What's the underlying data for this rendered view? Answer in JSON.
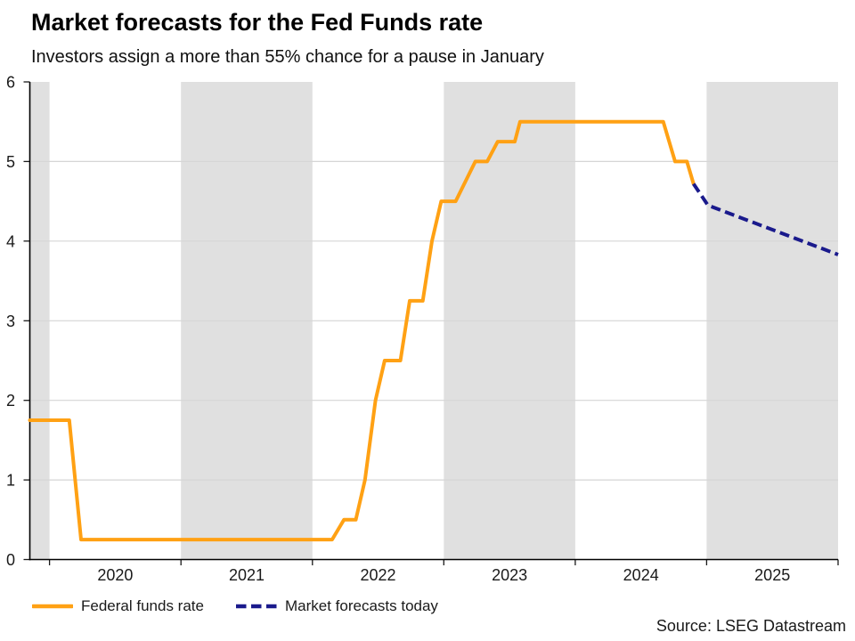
{
  "source": "Source: LSEG Datastream",
  "chart_data": {
    "type": "line",
    "title": "Market forecasts for the Fed Funds rate",
    "subtitle": "Investors assign a more than 55% chance for a pause in January",
    "xlabel": "",
    "ylabel": "",
    "xlim": [
      2019.85,
      2026.0
    ],
    "ylim": [
      0,
      6
    ],
    "yticks": [
      0,
      1,
      2,
      3,
      4,
      5,
      6
    ],
    "x_year_boundaries": [
      2020,
      2021,
      2022,
      2023,
      2024,
      2025,
      2026
    ],
    "x_year_labels": [
      "2020",
      "2021",
      "2022",
      "2023",
      "2024",
      "2025"
    ],
    "shaded_year_bands": [
      [
        2019.85,
        2020
      ],
      [
        2021,
        2022
      ],
      [
        2023,
        2024
      ],
      [
        2025,
        2026
      ]
    ],
    "band_color": "#E0E0E0",
    "gridline_color": "#D6D6D6",
    "axis_color": "#000000",
    "grid": "horizontal",
    "legend_position": "bottom-left",
    "series": [
      {
        "name": "Federal funds rate",
        "color": "#FFA114",
        "style": "solid",
        "points": [
          [
            2019.85,
            1.75
          ],
          [
            2020.15,
            1.75
          ],
          [
            2020.24,
            0.25
          ],
          [
            2022.15,
            0.25
          ],
          [
            2022.24,
            0.5
          ],
          [
            2022.33,
            0.5
          ],
          [
            2022.4,
            1.0
          ],
          [
            2022.48,
            2.0
          ],
          [
            2022.55,
            2.5
          ],
          [
            2022.67,
            2.5
          ],
          [
            2022.74,
            3.25
          ],
          [
            2022.84,
            3.25
          ],
          [
            2022.91,
            4.0
          ],
          [
            2022.98,
            4.5
          ],
          [
            2023.09,
            4.5
          ],
          [
            2023.24,
            5.0
          ],
          [
            2023.33,
            5.0
          ],
          [
            2023.41,
            5.25
          ],
          [
            2023.54,
            5.25
          ],
          [
            2023.58,
            5.5
          ],
          [
            2024.67,
            5.5
          ],
          [
            2024.76,
            5.0
          ],
          [
            2024.85,
            5.0
          ],
          [
            2024.9,
            4.72
          ]
        ]
      },
      {
        "name": "Market forecasts today",
        "color": "#1A1A8C",
        "style": "dashed",
        "points": [
          [
            2024.9,
            4.72
          ],
          [
            2025.01,
            4.45
          ],
          [
            2026.0,
            3.83
          ]
        ]
      }
    ]
  }
}
